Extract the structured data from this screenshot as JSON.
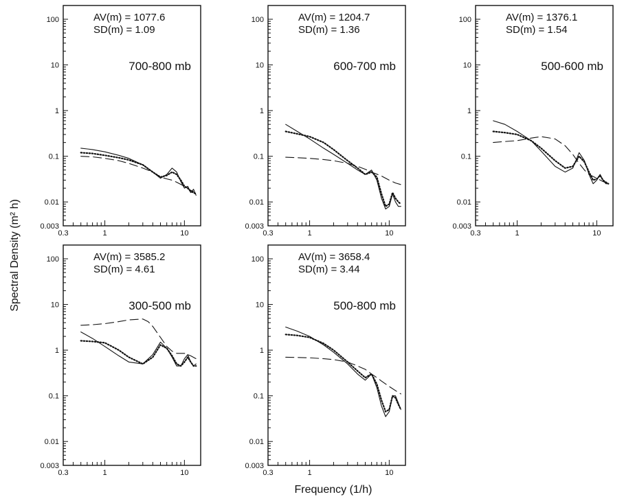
{
  "figure": {
    "ylabel": "Spectral Density (m² h)",
    "xlabel": "Frequency (1/h)"
  },
  "chart_data": [
    {
      "type": "line",
      "title": "700-800 mb",
      "av_label": "AV(m)  =  1077.6",
      "sd_label": "SD(m)  =  1.09",
      "xscale": "log",
      "yscale": "log",
      "xlim": [
        0.3,
        16
      ],
      "ylim": [
        0.003,
        200
      ],
      "xticks": [
        "0.3",
        "1",
        "10"
      ],
      "yticks": [
        "100",
        "10",
        "1",
        "0.1",
        "0.01",
        "0.003"
      ],
      "series": [
        {
          "style": "solid",
          "x": [
            0.5,
            0.7,
            1,
            1.5,
            2,
            3,
            4,
            5,
            6,
            7,
            8,
            9,
            10,
            11,
            12,
            13,
            14
          ],
          "y": [
            0.15,
            0.14,
            0.125,
            0.105,
            0.09,
            0.065,
            0.045,
            0.033,
            0.04,
            0.055,
            0.045,
            0.028,
            0.02,
            0.022,
            0.016,
            0.019,
            0.014
          ]
        },
        {
          "style": "dotted",
          "x": [
            0.5,
            0.7,
            1,
            1.5,
            2,
            3,
            4,
            5,
            6,
            7,
            8,
            9,
            10,
            11,
            12,
            13,
            14
          ],
          "y": [
            0.12,
            0.115,
            0.105,
            0.093,
            0.083,
            0.065,
            0.045,
            0.035,
            0.038,
            0.045,
            0.04,
            0.03,
            0.022,
            0.02,
            0.017,
            0.016,
            0.015
          ]
        },
        {
          "style": "dashed",
          "x": [
            0.5,
            0.7,
            1,
            1.5,
            2,
            3,
            4,
            5,
            6,
            7,
            8,
            10,
            12,
            14
          ],
          "y": [
            0.1,
            0.097,
            0.09,
            0.08,
            0.07,
            0.055,
            0.045,
            0.035,
            0.032,
            0.03,
            0.027,
            0.022,
            0.018,
            0.016
          ]
        }
      ]
    },
    {
      "type": "line",
      "title": "600-700 mb",
      "av_label": "AV(m)  =  1204.7",
      "sd_label": "SD(m)  =  1.36",
      "xscale": "log",
      "yscale": "log",
      "xlim": [
        0.3,
        16
      ],
      "ylim": [
        0.003,
        200
      ],
      "xticks": [
        "0.3",
        "1",
        "10"
      ],
      "yticks": [
        "100",
        "10",
        "1",
        "0.1",
        "0.01",
        "0.003"
      ],
      "series": [
        {
          "style": "solid",
          "x": [
            0.5,
            0.7,
            1,
            1.5,
            2,
            3,
            4,
            5,
            6,
            7,
            8,
            9,
            10,
            11,
            12,
            13,
            14
          ],
          "y": [
            0.5,
            0.35,
            0.24,
            0.15,
            0.11,
            0.07,
            0.05,
            0.04,
            0.05,
            0.03,
            0.012,
            0.007,
            0.008,
            0.015,
            0.01,
            0.008,
            0.008
          ]
        },
        {
          "style": "dotted",
          "x": [
            0.5,
            0.7,
            1,
            1.5,
            2,
            3,
            4,
            5,
            6,
            7,
            8,
            9,
            10,
            11,
            12,
            13,
            14
          ],
          "y": [
            0.35,
            0.31,
            0.27,
            0.2,
            0.14,
            0.08,
            0.055,
            0.04,
            0.045,
            0.035,
            0.015,
            0.008,
            0.009,
            0.016,
            0.012,
            0.01,
            0.009
          ]
        },
        {
          "style": "dashed",
          "x": [
            0.5,
            0.7,
            1,
            1.5,
            2,
            3,
            4,
            5,
            6,
            8,
            10,
            12,
            14
          ],
          "y": [
            0.095,
            0.093,
            0.09,
            0.085,
            0.08,
            0.07,
            0.06,
            0.052,
            0.045,
            0.037,
            0.03,
            0.026,
            0.024
          ]
        }
      ]
    },
    {
      "type": "line",
      "title": "500-600 mb",
      "av_label": "AV(m)  =  1376.1",
      "sd_label": "SD(m)  =  1.54",
      "xscale": "log",
      "yscale": "log",
      "xlim": [
        0.3,
        16
      ],
      "ylim": [
        0.003,
        200
      ],
      "xticks": [
        "0.3",
        "1",
        "10"
      ],
      "yticks": [
        "100",
        "10",
        "1",
        "0.1",
        "0.01",
        "0.003"
      ],
      "series": [
        {
          "style": "solid",
          "x": [
            0.5,
            0.7,
            1,
            1.5,
            2,
            3,
            4,
            5,
            6,
            7,
            8,
            9,
            10,
            11,
            12,
            13,
            14
          ],
          "y": [
            0.6,
            0.5,
            0.35,
            0.22,
            0.13,
            0.06,
            0.045,
            0.055,
            0.12,
            0.08,
            0.04,
            0.025,
            0.03,
            0.04,
            0.03,
            0.025,
            0.025
          ]
        },
        {
          "style": "dotted",
          "x": [
            0.5,
            0.7,
            1,
            1.5,
            2,
            3,
            4,
            5,
            6,
            7,
            8,
            9,
            10,
            11,
            12,
            13,
            14
          ],
          "y": [
            0.35,
            0.33,
            0.3,
            0.22,
            0.15,
            0.08,
            0.055,
            0.06,
            0.1,
            0.075,
            0.045,
            0.03,
            0.032,
            0.038,
            0.03,
            0.027,
            0.025
          ]
        },
        {
          "style": "dashed",
          "x": [
            0.5,
            0.7,
            1,
            1.5,
            2,
            3,
            4,
            5,
            6,
            7,
            8,
            10,
            12,
            14
          ],
          "y": [
            0.2,
            0.21,
            0.22,
            0.25,
            0.27,
            0.24,
            0.17,
            0.11,
            0.07,
            0.05,
            0.04,
            0.033,
            0.028,
            0.025
          ]
        }
      ]
    },
    {
      "type": "line",
      "title": "300-500 mb",
      "av_label": "AV(m)  =  3585.2",
      "sd_label": "SD(m)  =  4.61",
      "xscale": "log",
      "yscale": "log",
      "xlim": [
        0.3,
        16
      ],
      "ylim": [
        0.003,
        200
      ],
      "xticks": [
        "0.3",
        "1",
        "10"
      ],
      "yticks": [
        "100",
        "10",
        "1",
        "0.1",
        "0.01",
        "0.003"
      ],
      "series": [
        {
          "style": "solid",
          "x": [
            0.5,
            0.7,
            1,
            1.5,
            2,
            3,
            4,
            5,
            6,
            7,
            8,
            9,
            10,
            11,
            12,
            13,
            14
          ],
          "y": [
            2.5,
            1.8,
            1.2,
            0.75,
            0.55,
            0.5,
            0.8,
            1.5,
            1.1,
            0.7,
            0.45,
            0.45,
            0.65,
            0.8,
            0.55,
            0.45,
            0.5
          ]
        },
        {
          "style": "dotted",
          "x": [
            0.5,
            0.7,
            1,
            1.5,
            2,
            3,
            4,
            5,
            6,
            7,
            8,
            9,
            10,
            11,
            12,
            13,
            14
          ],
          "y": [
            1.6,
            1.55,
            1.45,
            1.0,
            0.7,
            0.5,
            0.7,
            1.3,
            1.1,
            0.75,
            0.5,
            0.45,
            0.55,
            0.7,
            0.55,
            0.45,
            0.45
          ]
        },
        {
          "style": "dashed",
          "x": [
            0.5,
            0.7,
            1,
            1.5,
            2,
            3,
            3.5,
            4,
            5,
            6,
            7,
            8,
            10,
            12,
            14
          ],
          "y": [
            3.5,
            3.6,
            3.8,
            4.2,
            4.6,
            4.8,
            4.2,
            3.3,
            1.9,
            1.2,
            0.95,
            0.85,
            0.85,
            0.75,
            0.65
          ]
        }
      ]
    },
    {
      "type": "line",
      "title": "500-800 mb",
      "av_label": "AV(m)  =  3658.4",
      "sd_label": "SD(m)  =  3.44",
      "xscale": "log",
      "yscale": "log",
      "xlim": [
        0.3,
        16
      ],
      "ylim": [
        0.003,
        200
      ],
      "xticks": [
        "0.3",
        "1",
        "10"
      ],
      "yticks": [
        "100",
        "10",
        "1",
        "0.1",
        "0.01",
        "0.003"
      ],
      "series": [
        {
          "style": "solid",
          "x": [
            0.5,
            0.7,
            1,
            1.5,
            2,
            3,
            4,
            5,
            6,
            7,
            8,
            9,
            10,
            11,
            12,
            13,
            14
          ],
          "y": [
            3.2,
            2.6,
            2.0,
            1.3,
            0.9,
            0.5,
            0.3,
            0.22,
            0.3,
            0.15,
            0.06,
            0.035,
            0.045,
            0.1,
            0.1,
            0.07,
            0.05
          ]
        },
        {
          "style": "dotted",
          "x": [
            0.5,
            0.7,
            1,
            1.5,
            2,
            3,
            4,
            5,
            6,
            7,
            8,
            9,
            10,
            11,
            12,
            13,
            14
          ],
          "y": [
            2.2,
            2.1,
            1.9,
            1.4,
            1.0,
            0.55,
            0.35,
            0.25,
            0.3,
            0.18,
            0.08,
            0.045,
            0.05,
            0.1,
            0.09,
            0.065,
            0.05
          ]
        },
        {
          "style": "dashed",
          "x": [
            0.5,
            0.7,
            1,
            1.5,
            2,
            3,
            4,
            5,
            6,
            7,
            8,
            10,
            12,
            14
          ],
          "y": [
            0.7,
            0.69,
            0.68,
            0.65,
            0.62,
            0.55,
            0.45,
            0.38,
            0.3,
            0.25,
            0.21,
            0.16,
            0.13,
            0.11
          ]
        }
      ]
    }
  ]
}
